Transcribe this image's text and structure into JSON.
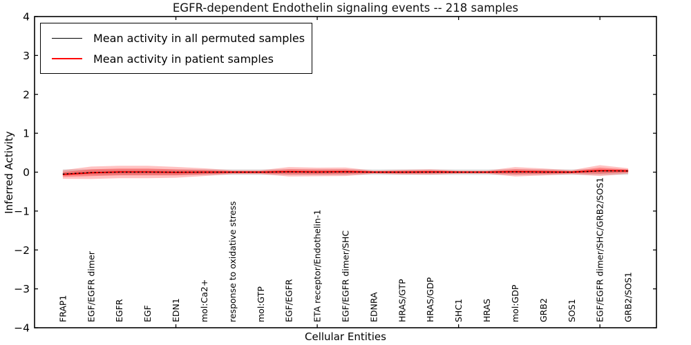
{
  "title": "EGFR-dependent Endothelin signaling events -- 218 samples",
  "legend": {
    "entries": [
      {
        "label": "Mean activity in all permuted samples",
        "color": "#000000"
      },
      {
        "label": "Mean activity in patient samples",
        "color": "#ff0000"
      }
    ]
  },
  "chart_data": {
    "type": "line",
    "title": "EGFR-dependent Endothelin signaling events -- 218 samples",
    "xlabel": "Cellular Entities",
    "ylabel": "Inferred Activity",
    "ylim": [
      -4,
      4
    ],
    "ytick_labels": [
      "4",
      "3",
      "2",
      "1",
      "0",
      "−1",
      "−2",
      "−3",
      "−4"
    ],
    "ytick_values": [
      4,
      3,
      2,
      1,
      0,
      -1,
      -2,
      -3,
      -4
    ],
    "xtick_major_indices": [
      5,
      10,
      15,
      20
    ],
    "grid": false,
    "legend_position": "upper left",
    "categories": [
      "FRAP1",
      "EGF/EGFR dimer",
      "EGFR",
      "EGF",
      "EDN1",
      "mol:Ca2+",
      "response to oxidative stress",
      "mol:GTP",
      "EGF/EGFR",
      "ETA receptor/Endothelin-1",
      "EGF/EGFR dimer/SHC",
      "EDNRA",
      "HRAS/GTP",
      "HRAS/GDP",
      "SHC1",
      "HRAS",
      "mol:GDP",
      "GRB2",
      "SOS1",
      "EGF/EGFR dimer/SHC/GRB2/SOS1",
      "GRB2/SOS1"
    ],
    "series": [
      {
        "name": "Mean activity in all permuted samples",
        "color": "#000000",
        "values": [
          -0.05,
          -0.01,
          0,
          0,
          0,
          0,
          0,
          0,
          0.005,
          0,
          0.005,
          0,
          0,
          0,
          0,
          0,
          0.005,
          0,
          0,
          0.03,
          0.03
        ],
        "band_halfwidth_constant": 0.07,
        "band_color": "#999999"
      },
      {
        "name": "Mean activity in patient samples",
        "color": "#ff0000",
        "values": [
          -0.06,
          -0.015,
          0.005,
          0.005,
          -0.005,
          0,
          0,
          0,
          0.01,
          0.005,
          0.01,
          0,
          0,
          0.005,
          0,
          0,
          0.01,
          0.005,
          0,
          0.04,
          0.03
        ],
        "band_halfwidths": [
          0.11,
          0.16,
          0.16,
          0.16,
          0.14,
          0.1,
          0.05,
          0.05,
          0.12,
          0.11,
          0.11,
          0.04,
          0.06,
          0.07,
          0.04,
          0.04,
          0.12,
          0.09,
          0.05,
          0.14,
          0.07
        ],
        "inner_band_ratio": 0.55,
        "band_color": "#ff0000"
      }
    ]
  }
}
